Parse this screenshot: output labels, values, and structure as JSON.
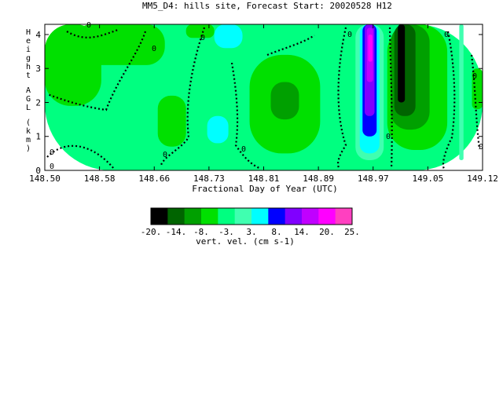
{
  "chart_data": {
    "type": "heatmap",
    "title": "MM5_D4: hills site,  Forecast Start: 20020528 H12",
    "xlabel": "Fractional Day of Year (UTC)",
    "ylabel": "Height AGL (km)",
    "xlim": [
      148.5,
      149.12
    ],
    "ylim": [
      0,
      4.3
    ],
    "x_ticks": [
      "148.50",
      "148.58",
      "148.66",
      "148.73",
      "148.81",
      "148.89",
      "148.97",
      "149.05",
      "149.12"
    ],
    "y_ticks": [
      "0",
      "1",
      "2",
      "3",
      "4"
    ],
    "contour_labels": [
      "0",
      "0",
      "0",
      "0",
      "0",
      "0",
      "0",
      "0",
      "0",
      "0",
      "0",
      "0"
    ],
    "colorbar": {
      "label": "vert. vel. (cm s-1)",
      "tick_labels": [
        "-20.",
        "-14.",
        "-8.",
        "-3.",
        "3.",
        "8.",
        "14.",
        "20.",
        "25."
      ],
      "colors": [
        "#000000",
        "#006400",
        "#00a000",
        "#00e000",
        "#00ff80",
        "#40ffb0",
        "#00ffff",
        "#0000ff",
        "#8000ff",
        "#c000ff",
        "#ff00ff",
        "#ff40c0"
      ]
    },
    "regions": [
      {
        "level": 4,
        "x0": 148.5,
        "x1": 149.12,
        "y0": 0,
        "y1": 4.3
      },
      {
        "level": 3,
        "x0": 148.5,
        "x1": 148.58,
        "y0": 1.9,
        "y1": 4.3
      },
      {
        "level": 3,
        "x0": 148.54,
        "x1": 148.67,
        "y0": 3.1,
        "y1": 4.3
      },
      {
        "level": 3,
        "x0": 148.66,
        "x1": 148.7,
        "y0": 0.7,
        "y1": 2.2
      },
      {
        "level": 3,
        "x0": 148.7,
        "x1": 148.74,
        "y0": 3.9,
        "y1": 4.3
      },
      {
        "level": 3,
        "x0": 148.79,
        "x1": 148.89,
        "y0": 0.5,
        "y1": 3.4
      },
      {
        "level": 2,
        "x0": 148.82,
        "x1": 148.86,
        "y0": 1.5,
        "y1": 2.6
      },
      {
        "level": 6,
        "x0": 148.74,
        "x1": 148.78,
        "y0": 3.6,
        "y1": 4.3
      },
      {
        "level": 6,
        "x0": 148.73,
        "x1": 148.76,
        "y0": 0.8,
        "y1": 1.6
      },
      {
        "level": 5,
        "x0": 148.94,
        "x1": 148.98,
        "y0": 0.3,
        "y1": 4.3
      },
      {
        "level": 6,
        "x0": 148.946,
        "x1": 148.974,
        "y0": 0.5,
        "y1": 4.3
      },
      {
        "level": 7,
        "x0": 148.95,
        "x1": 148.97,
        "y0": 1.0,
        "y1": 4.3
      },
      {
        "level": 8,
        "x0": 148.953,
        "x1": 148.967,
        "y0": 1.6,
        "y1": 4.3
      },
      {
        "level": 9,
        "x0": 148.956,
        "x1": 148.965,
        "y0": 2.6,
        "y1": 4.2
      },
      {
        "level": 10,
        "x0": 148.958,
        "x1": 148.964,
        "y0": 3.2,
        "y1": 4.0
      },
      {
        "level": 3,
        "x0": 148.985,
        "x1": 149.07,
        "y0": 0.6,
        "y1": 4.3
      },
      {
        "level": 2,
        "x0": 148.99,
        "x1": 149.045,
        "y0": 1.2,
        "y1": 4.3
      },
      {
        "level": 1,
        "x0": 148.995,
        "x1": 149.025,
        "y0": 1.6,
        "y1": 4.3
      },
      {
        "level": 0,
        "x0": 149.0,
        "x1": 149.01,
        "y0": 2.0,
        "y1": 4.3
      },
      {
        "level": 5,
        "x0": 149.087,
        "x1": 149.093,
        "y0": 0.3,
        "y1": 4.3
      },
      {
        "level": 3,
        "x0": 149.105,
        "x1": 149.12,
        "y0": 1.8,
        "y1": 3.0
      }
    ]
  }
}
